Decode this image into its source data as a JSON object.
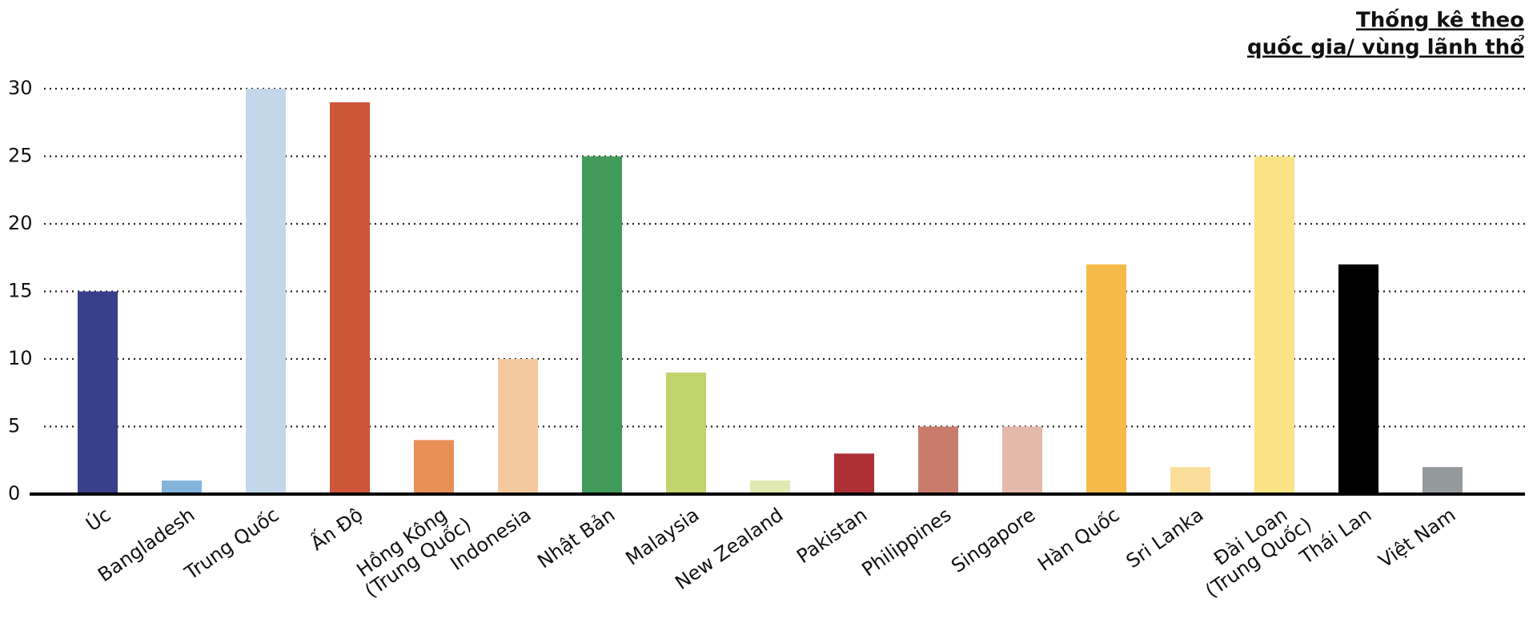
{
  "chart_data": {
    "type": "bar",
    "title": [
      "Thống kê theo",
      "quốc gia/ vùng lãnh thổ"
    ],
    "categories": [
      [
        "Úc"
      ],
      [
        "Bangladesh"
      ],
      [
        "Trung Quốc"
      ],
      [
        "Ấn Độ"
      ],
      [
        "Hồng Kông",
        "(Trung Quốc)"
      ],
      [
        "Indonesia"
      ],
      [
        "Nhật Bản"
      ],
      [
        "Malaysia"
      ],
      [
        "New Zealand"
      ],
      [
        "Pakistan"
      ],
      [
        "Philippines"
      ],
      [
        "Singapore"
      ],
      [
        "Hàn Quốc"
      ],
      [
        "Sri Lanka"
      ],
      [
        "Đài Loan",
        "(Trung Quốc)"
      ],
      [
        "Thái Lan"
      ],
      [
        "Việt Nam"
      ]
    ],
    "values": [
      15,
      1,
      30,
      29,
      4,
      10,
      25,
      9,
      1,
      3,
      5,
      5,
      17,
      2,
      25,
      17,
      2
    ],
    "colors": [
      "#3a3f8a",
      "#82b4dc",
      "#c2d8ea",
      "#cd5638",
      "#e88f58",
      "#f5c9a0",
      "#429a5a",
      "#c1d46c",
      "#dfe9b1",
      "#ae3034",
      "#c97c6c",
      "#e2b9aa",
      "#f5bb4a",
      "#fbdd9a",
      "#f9e384",
      "#000000",
      "#959a9d"
    ],
    "ylim": [
      0,
      30
    ],
    "yticks": [
      0,
      5,
      10,
      15,
      20,
      25,
      30
    ],
    "grid": true
  }
}
